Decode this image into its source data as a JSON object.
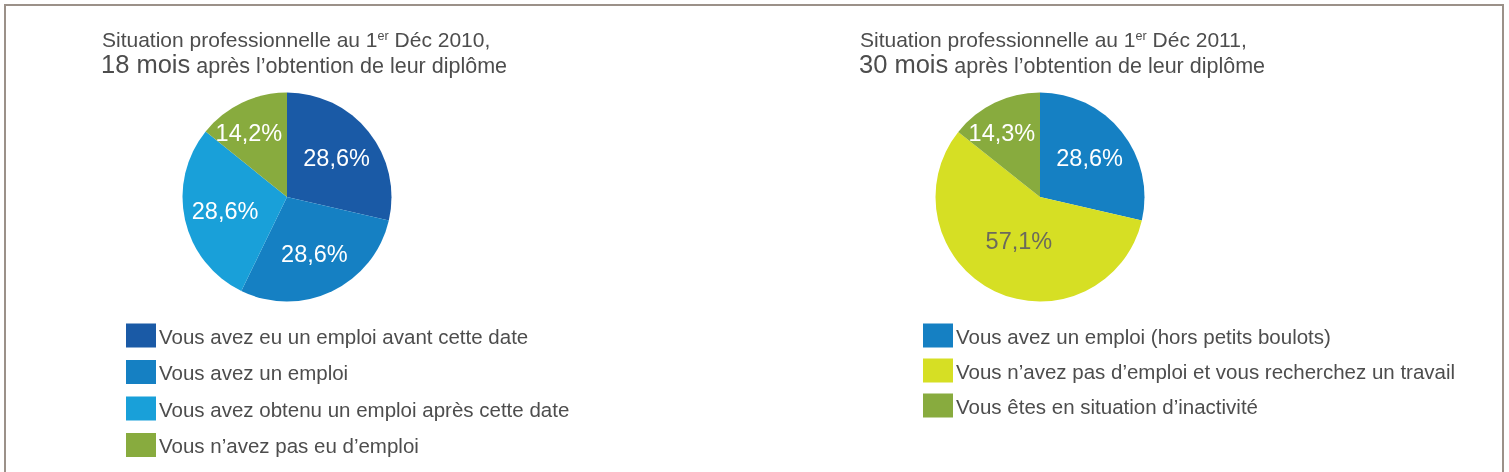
{
  "chart_data": [
    {
      "type": "pie",
      "title": "Situation professionnelle au 1$^{er}$ Déc 2010,",
      "subtitle": "18 mois après l’obtention de leur diplôme",
      "categories": [
        "Vous avez eu un emploi avant cette date",
        "Vous avez un emploi",
        "Vous avez obtenu un emploi après cette date",
        "Vous n’avez pas eu d’emploi"
      ],
      "values": [
        28.6,
        28.6,
        28.6,
        14.2
      ],
      "colors": [
        "#1a5aa6",
        "#1580c3",
        "#19a0d9",
        "#88ab3e"
      ],
      "value_labels": [
        "28,6%",
        "28,6%",
        "28,6%",
        "14,2%"
      ],
      "legend": "bottom"
    },
    {
      "type": "pie",
      "title": "Situation professionnelle au 1$^{er}$ Déc 2011,",
      "subtitle": "30 mois après l’obtention de leur diplôme",
      "categories": [
        "Vous avez un emploi (hors petits boulots)",
        "Vous n’avez pas d’emploi et vous recherchez un travail",
        "Vous êtes en situation d’inactivité"
      ],
      "values": [
        28.6,
        57.1,
        14.3
      ],
      "colors": [
        "#1580c3",
        "#d6df24",
        "#88ab3e"
      ],
      "value_labels": [
        "28,6%",
        "57,1%",
        "14,3%"
      ],
      "legend": "bottom"
    }
  ]
}
